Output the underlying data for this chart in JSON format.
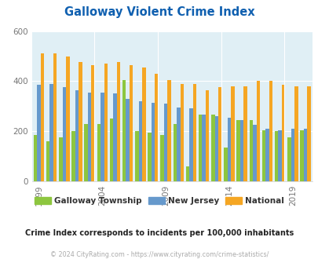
{
  "title": "Galloway Violent Crime Index",
  "title_color": "#1060b0",
  "years": [
    1999,
    2000,
    2001,
    2002,
    2003,
    2004,
    2005,
    2006,
    2007,
    2008,
    2009,
    2010,
    2011,
    2012,
    2013,
    2014,
    2015,
    2016,
    2017,
    2018,
    2019,
    2020
  ],
  "galloway": [
    185,
    160,
    175,
    200,
    230,
    230,
    250,
    405,
    200,
    195,
    185,
    230,
    60,
    265,
    265,
    135,
    245,
    245,
    205,
    200,
    175,
    205
  ],
  "new_jersey": [
    385,
    390,
    375,
    365,
    355,
    355,
    350,
    330,
    320,
    315,
    310,
    295,
    290,
    265,
    260,
    255,
    245,
    225,
    210,
    205,
    210,
    210
  ],
  "national": [
    510,
    510,
    500,
    475,
    465,
    470,
    475,
    465,
    455,
    430,
    405,
    390,
    390,
    365,
    375,
    380,
    380,
    400,
    400,
    385,
    380,
    380
  ],
  "galloway_color": "#8dc63f",
  "nj_color": "#6699cc",
  "national_color": "#f5a623",
  "bg_color": "#e0eff5",
  "ylim": [
    0,
    600
  ],
  "yticks": [
    0,
    200,
    400,
    600
  ],
  "xtick_years": [
    1999,
    2004,
    2009,
    2014,
    2019
  ],
  "subtitle": "Crime Index corresponds to incidents per 100,000 inhabitants",
  "footer": "© 2024 CityRating.com - https://www.cityrating.com/crime-statistics/",
  "legend_labels": [
    "Galloway Township",
    "New Jersey",
    "National"
  ],
  "bar_width": 0.28
}
